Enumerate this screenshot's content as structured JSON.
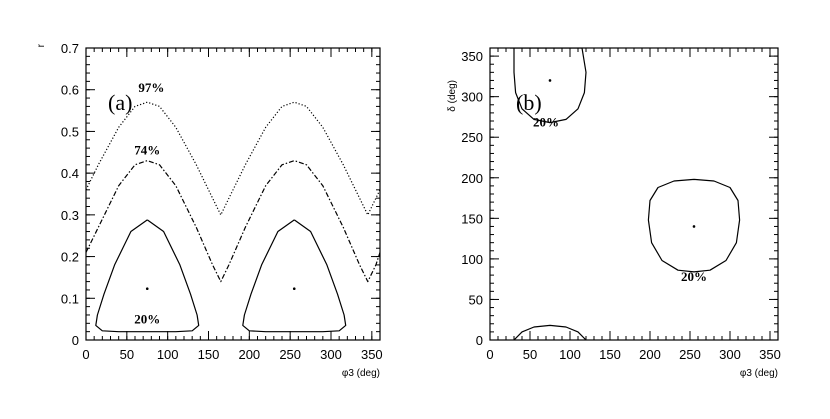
{
  "chart_data": [
    {
      "type": "line",
      "panel_label": "(a)",
      "xlabel": "φ3 (deg)",
      "ylabel": "r",
      "xlim": [
        0,
        360
      ],
      "ylim": [
        0,
        0.7
      ],
      "xticks": [
        0,
        50,
        100,
        150,
        200,
        250,
        300,
        350
      ],
      "yticks": [
        0,
        0.1,
        0.2,
        0.3,
        0.4,
        0.5,
        0.6,
        0.7
      ],
      "grid": false,
      "series": [
        {
          "style": "dotted",
          "x": [
            0,
            15,
            40,
            60,
            75,
            90,
            110,
            135,
            155,
            165,
            175,
            195,
            220,
            240,
            255,
            270,
            290,
            315,
            335,
            345,
            355,
            360
          ],
          "y": [
            0.36,
            0.42,
            0.51,
            0.56,
            0.57,
            0.56,
            0.51,
            0.42,
            0.34,
            0.3,
            0.34,
            0.42,
            0.51,
            0.56,
            0.57,
            0.56,
            0.51,
            0.42,
            0.34,
            0.3,
            0.34,
            0.36
          ]
        },
        {
          "style": "dashed",
          "x": [
            0,
            15,
            40,
            60,
            75,
            90,
            110,
            135,
            155,
            165,
            175,
            195,
            220,
            240,
            255,
            270,
            290,
            315,
            335,
            345,
            355,
            360
          ],
          "y": [
            0.21,
            0.27,
            0.37,
            0.42,
            0.43,
            0.42,
            0.37,
            0.27,
            0.18,
            0.14,
            0.18,
            0.27,
            0.37,
            0.42,
            0.43,
            0.42,
            0.37,
            0.27,
            0.18,
            0.14,
            0.18,
            0.21
          ]
        },
        {
          "style": "solid",
          "x": [
            75,
            95,
            115,
            128,
            136,
            138,
            130,
            110,
            75,
            40,
            20,
            12,
            14,
            22,
            35,
            55,
            75
          ],
          "y": [
            0.288,
            0.26,
            0.18,
            0.11,
            0.06,
            0.035,
            0.022,
            0.02,
            0.02,
            0.02,
            0.022,
            0.035,
            0.06,
            0.11,
            0.18,
            0.26,
            0.288
          ]
        },
        {
          "style": "solid",
          "x": [
            255,
            275,
            295,
            308,
            316,
            318,
            310,
            290,
            255,
            220,
            200,
            192,
            194,
            202,
            215,
            235,
            255
          ],
          "y": [
            0.288,
            0.26,
            0.18,
            0.11,
            0.06,
            0.035,
            0.022,
            0.02,
            0.02,
            0.02,
            0.022,
            0.035,
            0.06,
            0.11,
            0.18,
            0.26,
            0.288
          ]
        }
      ],
      "points": [
        {
          "x": 75,
          "y": 0.123
        },
        {
          "x": 255,
          "y": 0.123
        }
      ],
      "annotations": [
        {
          "text": "97%",
          "x": 80,
          "y": 0.595
        },
        {
          "text": "74%",
          "x": 75,
          "y": 0.445
        },
        {
          "text": "20%",
          "x": 75,
          "y": 0.04
        }
      ]
    },
    {
      "type": "line",
      "panel_label": "(b)",
      "xlabel": "φ3 (deg)",
      "ylabel": "δ (deg)",
      "xlim": [
        0,
        360
      ],
      "ylim": [
        0,
        360
      ],
      "xticks": [
        0,
        50,
        100,
        150,
        200,
        250,
        300,
        350
      ],
      "yticks": [
        0,
        50,
        100,
        150,
        200,
        250,
        300,
        350
      ],
      "grid": false,
      "series": [
        {
          "style": "solid",
          "x": [
            25,
            115,
            120,
            118,
            110,
            95,
            75,
            55,
            40,
            32,
            30,
            30
          ],
          "y": [
            360,
            360,
            330,
            305,
            285,
            272,
            268,
            272,
            285,
            305,
            330,
            360
          ]
        },
        {
          "style": "solid",
          "x": [
            255,
            280,
            300,
            310,
            312,
            308,
            295,
            275,
            255,
            235,
            215,
            202,
            198,
            200,
            210,
            230,
            255
          ],
          "y": [
            198,
            196,
            188,
            172,
            148,
            120,
            98,
            86,
            84,
            86,
            98,
            120,
            148,
            172,
            188,
            196,
            198
          ]
        },
        {
          "style": "solid",
          "x": [
            30,
            40,
            55,
            75,
            95,
            110,
            120
          ],
          "y": [
            0,
            10,
            16,
            18,
            16,
            10,
            0
          ]
        }
      ],
      "points": [
        {
          "x": 75,
          "y": 320
        },
        {
          "x": 255,
          "y": 140
        }
      ],
      "annotations": [
        {
          "text": "20%",
          "x": 70,
          "y": 263
        },
        {
          "text": "20%",
          "x": 255,
          "y": 73
        }
      ]
    }
  ]
}
